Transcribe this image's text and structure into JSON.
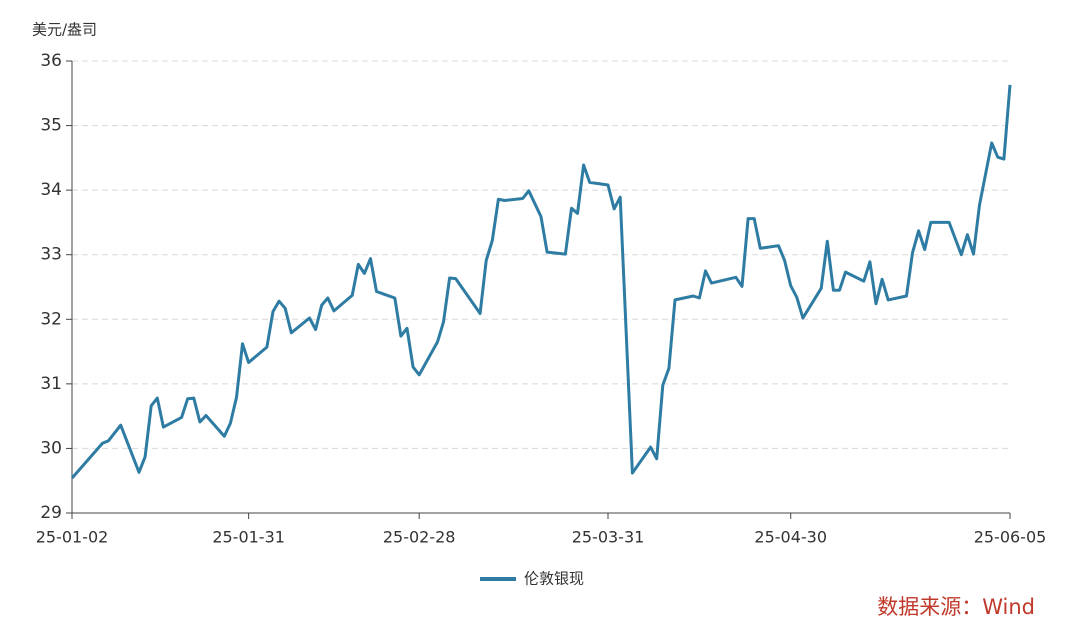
{
  "chart_data": {
    "type": "line",
    "y_label": "美元/盎司",
    "note": "数据来源：Wind",
    "x": [
      "25-01-02",
      "25-01-07",
      "25-01-08",
      "25-01-10",
      "25-01-13",
      "25-01-14",
      "25-01-15",
      "25-01-16",
      "25-01-17",
      "25-01-20",
      "25-01-21",
      "25-01-22",
      "25-01-23",
      "25-01-24",
      "25-01-27",
      "25-01-28",
      "25-01-29",
      "25-01-30",
      "25-01-31",
      "25-02-03",
      "25-02-04",
      "25-02-05",
      "25-02-06",
      "25-02-07",
      "25-02-10",
      "25-02-11",
      "25-02-12",
      "25-02-13",
      "25-02-14",
      "25-02-17",
      "25-02-18",
      "25-02-19",
      "25-02-20",
      "25-02-21",
      "25-02-24",
      "25-02-25",
      "25-02-26",
      "25-02-27",
      "25-02-28",
      "25-03-03",
      "25-03-04",
      "25-03-05",
      "25-03-06",
      "25-03-10",
      "25-03-11",
      "25-03-12",
      "25-03-13",
      "25-03-14",
      "25-03-17",
      "25-03-18",
      "25-03-20",
      "25-03-21",
      "25-03-24",
      "25-03-25",
      "25-03-26",
      "25-03-27",
      "25-03-28",
      "25-03-31",
      "25-04-01",
      "25-04-02",
      "25-04-04",
      "25-04-07",
      "25-04-08",
      "25-04-09",
      "25-04-10",
      "25-04-11",
      "25-04-14",
      "25-04-15",
      "25-04-16",
      "25-04-17",
      "25-04-21",
      "25-04-22",
      "25-04-23",
      "25-04-24",
      "25-04-25",
      "25-04-28",
      "25-04-29",
      "25-04-30",
      "25-05-01",
      "25-05-02",
      "25-05-05",
      "25-05-06",
      "25-05-07",
      "25-05-08",
      "25-05-09",
      "25-05-12",
      "25-05-13",
      "25-05-14",
      "25-05-15",
      "25-05-16",
      "25-05-19",
      "25-05-20",
      "25-05-21",
      "25-05-22",
      "25-05-23",
      "25-05-26",
      "25-05-28",
      "25-05-29",
      "25-05-30",
      "25-05-31",
      "25-06-02",
      "25-06-03",
      "25-06-04",
      "25-06-05"
    ],
    "series": [
      {
        "name": "伦敦银现",
        "color": "#2e7ca3",
        "values": [
          29.54,
          30.08,
          30.12,
          30.36,
          29.63,
          29.87,
          30.66,
          30.78,
          30.33,
          30.48,
          30.77,
          30.78,
          30.41,
          30.51,
          30.19,
          30.39,
          30.79,
          31.62,
          31.33,
          31.57,
          32.12,
          32.28,
          32.17,
          31.79,
          32.02,
          31.84,
          32.22,
          32.33,
          32.13,
          32.37,
          32.85,
          32.71,
          32.94,
          32.43,
          32.33,
          31.74,
          31.86,
          31.26,
          31.14,
          31.65,
          31.96,
          32.64,
          32.63,
          32.09,
          32.91,
          33.22,
          33.86,
          33.84,
          33.87,
          33.99,
          33.59,
          33.04,
          33.01,
          33.72,
          33.64,
          34.39,
          34.12,
          34.08,
          33.71,
          33.89,
          29.62,
          30.02,
          29.84,
          30.98,
          31.24,
          32.3,
          32.36,
          32.33,
          32.75,
          32.56,
          32.65,
          32.51,
          33.56,
          33.56,
          33.1,
          33.14,
          32.91,
          32.52,
          32.34,
          32.02,
          32.48,
          33.21,
          32.45,
          32.45,
          32.73,
          32.59,
          32.89,
          32.24,
          32.62,
          32.3,
          32.36,
          33.03,
          33.37,
          33.08,
          33.5,
          33.5,
          33.0,
          33.31,
          33.01,
          33.77,
          34.73,
          34.51,
          34.48,
          35.63
        ]
      }
    ],
    "xlim": [
      "25-01-02",
      "25-06-05"
    ],
    "xticks": [
      "25-01-02",
      "25-01-31",
      "25-02-28",
      "25-03-31",
      "25-04-30",
      "25-06-05"
    ],
    "ylim": [
      29,
      36
    ],
    "yticks": [
      29,
      30,
      31,
      32,
      33,
      34,
      35,
      36
    ],
    "grid": true
  }
}
